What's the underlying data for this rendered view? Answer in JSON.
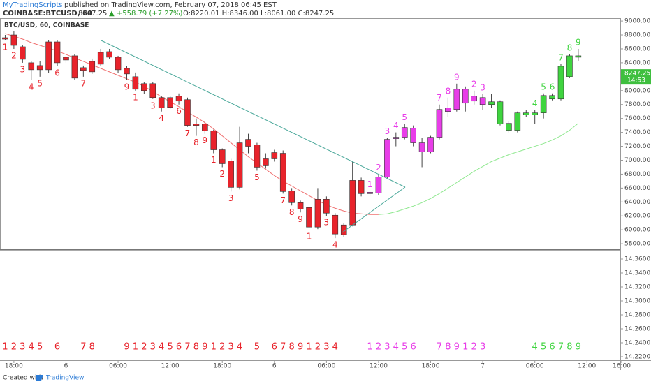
{
  "header": {
    "author": "MyTradingScripts",
    "published": "published on TradingView.com, February 07, 2018 06:45 EST",
    "symbol": "COINBASE:BTCUSD, 60",
    "price": "8247.25",
    "change": "▲ +558.79 (+7.27%)",
    "ohlc": "O:8220.01 H:8346.00 L:8061.00 C:8247.25"
  },
  "footer": {
    "created": "Created with",
    "brand": "TradingView"
  },
  "chart_data": {
    "type": "candlestick",
    "title": "BTC/USD, 60, COINBASE",
    "open": [
      8760,
      8800,
      8630,
      8400,
      8300,
      8300,
      8700,
      8480,
      8500,
      8330,
      8270,
      8380,
      8560,
      8480,
      8320,
      8200,
      8100,
      8100,
      7900,
      7760,
      7920,
      7870,
      7520,
      7520,
      7420,
      7150,
      6990,
      6610,
      7300,
      7220,
      7020,
      7020,
      7100,
      6560,
      6390,
      6320,
      6040,
      6440,
      6210,
      5930,
      6070,
      6710,
      6520,
      6530,
      6760,
      7310,
      7330,
      7460,
      7250,
      7120,
      7330,
      7700,
      7730,
      8020,
      7920,
      7900,
      7840,
      7840,
      7530,
      7430,
      7650,
      7650,
      7680,
      7880,
      7880,
      8200,
      8480
    ],
    "high": [
      8800,
      8850,
      8660,
      8420,
      8420,
      8720,
      8720,
      8500,
      8520,
      8360,
      8460,
      8600,
      8600,
      8500,
      8350,
      8260,
      8120,
      8120,
      7920,
      7920,
      7960,
      7900,
      7600,
      7560,
      7440,
      7170,
      7020,
      7480,
      7380,
      7250,
      7100,
      7150,
      7140,
      6600,
      6420,
      6350,
      6600,
      6480,
      6240,
      6100,
      6980,
      6750,
      6560,
      6800,
      7320,
      7400,
      7520,
      7500,
      7320,
      7350,
      7800,
      7900,
      8100,
      8060,
      8000,
      7950,
      7950,
      7860,
      7560,
      7700,
      7720,
      7720,
      7960,
      7960,
      8380,
      8520,
      8600
    ],
    "low": [
      8720,
      8600,
      8400,
      8150,
      8200,
      8250,
      8350,
      8400,
      8150,
      8200,
      8240,
      8350,
      8450,
      8250,
      8150,
      8000,
      7950,
      7880,
      7700,
      7740,
      7800,
      7480,
      7350,
      7380,
      7100,
      6900,
      6550,
      6580,
      7100,
      6850,
      6880,
      6980,
      6520,
      6350,
      6250,
      6000,
      6010,
      6200,
      5880,
      5900,
      6050,
      6480,
      6480,
      6500,
      6740,
      7200,
      7300,
      7200,
      6900,
      7100,
      7300,
      7620,
      7700,
      7700,
      7800,
      7720,
      7750,
      7500,
      7400,
      7400,
      7620,
      7520,
      7600,
      7860,
      7860,
      8180,
      8430
    ],
    "close": [
      8740,
      8650,
      8450,
      8300,
      8360,
      8700,
      8400,
      8440,
      8180,
      8290,
      8420,
      8550,
      8480,
      8300,
      8240,
      8020,
      8000,
      7900,
      7750,
      7900,
      7850,
      7500,
      7500,
      7420,
      7150,
      6950,
      6610,
      7250,
      7200,
      6900,
      6920,
      7110,
      6550,
      6390,
      6300,
      6040,
      6440,
      6240,
      5940,
      6070,
      6710,
      6520,
      6540,
      6760,
      7300,
      7330,
      7470,
      7250,
      7120,
      7330,
      7730,
      7750,
      8020,
      7820,
      7850,
      7800,
      7800,
      7520,
      7430,
      7680,
      7680,
      7680,
      7930,
      7930,
      8350,
      8500,
      8500
    ],
    "candle_colors": [
      "#e8232b",
      "#e8232b",
      "#e8232b",
      "#e8232b",
      "#e8232b",
      "#e8232b",
      "#e8232b",
      "#e8232b",
      "#e8232b",
      "#e8232b",
      "#e8232b",
      "#e8232b",
      "#e8232b",
      "#e8232b",
      "#e8232b",
      "#e8232b",
      "#e8232b",
      "#e8232b",
      "#e8232b",
      "#e8232b",
      "#e8232b",
      "#e8232b",
      "#e8232b",
      "#e8232b",
      "#e8232b",
      "#e8232b",
      "#e8232b",
      "#e8232b",
      "#e8232b",
      "#e8232b",
      "#e8232b",
      "#e8232b",
      "#e8232b",
      "#e8232b",
      "#e8232b",
      "#e8232b",
      "#e8232b",
      "#e8232b",
      "#e8232b",
      "#e8232b",
      "#e8232b",
      "#e8232b",
      "#e83de8",
      "#e83de8",
      "#e83de8",
      "#e83de8",
      "#e83de8",
      "#e83de8",
      "#e83de8",
      "#e83de8",
      "#e83de8",
      "#e83de8",
      "#e83de8",
      "#e83de8",
      "#e83de8",
      "#e83de8",
      "#3fd43f",
      "#3fd43f",
      "#3fd43f",
      "#3fd43f",
      "#3fd43f",
      "#3fd43f",
      "#3fd43f",
      "#3fd43f",
      "#3fd43f",
      "#3fd43f",
      "#3fd43f"
    ],
    "lines": [
      {
        "color": "#f07070",
        "values": [
          8820,
          8780,
          8740,
          8690,
          8650,
          8610,
          8570,
          8520,
          8470,
          8420,
          8370,
          8320,
          8270,
          8220,
          8170,
          8120,
          8060,
          7990,
          7910,
          7840,
          7770,
          7690,
          7620,
          7540,
          7450,
          7350,
          7250,
          7150,
          7050,
          6960,
          6870,
          6780,
          6700,
          6630,
          6560,
          6490,
          6420,
          6360,
          6310,
          6270,
          6240,
          6230,
          6220,
          6220,
          null,
          null,
          null,
          null,
          null,
          null,
          null,
          null,
          null,
          null,
          null,
          null,
          null,
          null,
          null,
          null,
          null,
          null,
          null,
          null,
          null,
          null,
          null
        ]
      },
      {
        "color": "#8fe88f",
        "values": [
          null,
          null,
          null,
          null,
          null,
          null,
          null,
          null,
          null,
          null,
          null,
          null,
          null,
          null,
          null,
          null,
          null,
          null,
          null,
          null,
          null,
          null,
          null,
          null,
          null,
          null,
          null,
          null,
          null,
          null,
          null,
          null,
          null,
          null,
          null,
          null,
          null,
          null,
          null,
          null,
          null,
          null,
          null,
          6220,
          6230,
          6260,
          6300,
          6340,
          6390,
          6450,
          6520,
          6600,
          6680,
          6760,
          6840,
          6910,
          6980,
          7030,
          7080,
          7120,
          7160,
          7200,
          7240,
          7290,
          7350,
          7430,
          7530
        ]
      }
    ],
    "setup_labels": [
      {
        "i": 0,
        "label": 1
      },
      {
        "i": 1,
        "label": 2
      },
      {
        "i": 2,
        "label": 3
      },
      {
        "i": 3,
        "label": 4
      },
      {
        "i": 4,
        "label": 5
      },
      {
        "i": 6,
        "label": 6
      },
      {
        "i": 9,
        "label": 7
      },
      {
        "i": 14,
        "label": 9
      },
      {
        "i": 15,
        "label": 1
      },
      {
        "i": 17,
        "label": 3
      },
      {
        "i": 18,
        "label": 4
      },
      {
        "i": 20,
        "label": 6
      },
      {
        "i": 21,
        "label": 7
      },
      {
        "i": 22,
        "label": 8
      },
      {
        "i": 23,
        "label": 9
      },
      {
        "i": 24,
        "label": 1
      },
      {
        "i": 25,
        "label": 2
      },
      {
        "i": 26,
        "label": 3
      },
      {
        "i": 29,
        "label": 5
      },
      {
        "i": 32,
        "label": 7
      },
      {
        "i": 33,
        "label": 8
      },
      {
        "i": 34,
        "label": 9
      },
      {
        "i": 35,
        "label": 1
      },
      {
        "i": 37,
        "label": 3
      },
      {
        "i": 38,
        "label": 4
      },
      {
        "i": 42,
        "label": 1
      },
      {
        "i": 43,
        "label": 2
      },
      {
        "i": 44,
        "label": 3
      },
      {
        "i": 45,
        "label": 4
      },
      {
        "i": 46,
        "label": 5
      },
      {
        "i": 50,
        "label": 7
      },
      {
        "i": 51,
        "label": 8
      },
      {
        "i": 52,
        "label": 9
      },
      {
        "i": 54,
        "label": 2
      },
      {
        "i": 55,
        "label": 3
      },
      {
        "i": 61,
        "label": 4
      },
      {
        "i": 62,
        "label": 5
      },
      {
        "i": 63,
        "label": 6
      },
      {
        "i": 64,
        "label": 7
      },
      {
        "i": 65,
        "label": 8
      },
      {
        "i": 66,
        "label": 9
      }
    ],
    "count_row": [
      {
        "i": 0,
        "label": 1
      },
      {
        "i": 1,
        "label": 2
      },
      {
        "i": 2,
        "label": 3
      },
      {
        "i": 3,
        "label": 4
      },
      {
        "i": 4,
        "label": 5
      },
      {
        "i": 6,
        "label": 6
      },
      {
        "i": 9,
        "label": 7
      },
      {
        "i": 10,
        "label": 8
      },
      {
        "i": 14,
        "label": 9
      },
      {
        "i": 15,
        "label": 1
      },
      {
        "i": 16,
        "label": 2
      },
      {
        "i": 17,
        "label": 3
      },
      {
        "i": 18,
        "label": 4
      },
      {
        "i": 19,
        "label": 5
      },
      {
        "i": 20,
        "label": 6
      },
      {
        "i": 21,
        "label": 7
      },
      {
        "i": 22,
        "label": 8
      },
      {
        "i": 23,
        "label": 9
      },
      {
        "i": 24,
        "label": 1
      },
      {
        "i": 25,
        "label": 2
      },
      {
        "i": 26,
        "label": 3
      },
      {
        "i": 27,
        "label": 4
      },
      {
        "i": 29,
        "label": 5
      },
      {
        "i": 31,
        "label": 6
      },
      {
        "i": 32,
        "label": 7
      },
      {
        "i": 33,
        "label": 8
      },
      {
        "i": 34,
        "label": 9
      },
      {
        "i": 35,
        "label": 1
      },
      {
        "i": 36,
        "label": 2
      },
      {
        "i": 37,
        "label": 3
      },
      {
        "i": 38,
        "label": 4
      },
      {
        "i": 42,
        "label": 1
      },
      {
        "i": 43,
        "label": 2
      },
      {
        "i": 44,
        "label": 3
      },
      {
        "i": 45,
        "label": 4
      },
      {
        "i": 46,
        "label": 5
      },
      {
        "i": 47,
        "label": 6
      },
      {
        "i": 50,
        "label": 7
      },
      {
        "i": 51,
        "label": 8
      },
      {
        "i": 52,
        "label": 9
      },
      {
        "i": 53,
        "label": 1
      },
      {
        "i": 54,
        "label": 2
      },
      {
        "i": 55,
        "label": 3
      },
      {
        "i": 61,
        "label": 4
      },
      {
        "i": 62,
        "label": 5
      },
      {
        "i": 63,
        "label": 6
      },
      {
        "i": 64,
        "label": 7
      },
      {
        "i": 65,
        "label": 8
      },
      {
        "i": 66,
        "label": 9
      }
    ],
    "xlim": [
      -0.6,
      71
    ],
    "xticks": [
      {
        "value": 1,
        "label": "18:00"
      },
      {
        "value": 7,
        "label": "6"
      },
      {
        "value": 13,
        "label": "06:00"
      },
      {
        "value": 19,
        "label": "12:00"
      },
      {
        "value": 25,
        "label": "18:00"
      },
      {
        "value": 31,
        "label": "6"
      },
      {
        "value": 37,
        "label": "06:00"
      },
      {
        "value": 43,
        "label": "12:00"
      },
      {
        "value": 49,
        "label": "18:00"
      },
      {
        "value": 55,
        "label": "7"
      },
      {
        "value": 61,
        "label": "06:00"
      },
      {
        "value": 67,
        "label": "12:00"
      },
      {
        "value": 71,
        "label": "16:00"
      }
    ],
    "ylim": [
      5721,
      9041
    ],
    "yticks": [
      {
        "value": 5800,
        "label": "5800.00"
      },
      {
        "value": 6000,
        "label": "6000.00"
      },
      {
        "value": 6200,
        "label": "6200.00"
      },
      {
        "value": 6400,
        "label": "6400.00"
      },
      {
        "value": 6600,
        "label": "6600.00"
      },
      {
        "value": 6800,
        "label": "6800.00"
      },
      {
        "value": 7000,
        "label": "7000.00"
      },
      {
        "value": 7200,
        "label": "7200.00"
      },
      {
        "value": 7400,
        "label": "7400.00"
      },
      {
        "value": 7600,
        "label": "7600.00"
      },
      {
        "value": 7800,
        "label": "7800.00"
      },
      {
        "value": 8000,
        "label": "8000.00"
      },
      {
        "value": 8200,
        "label": "8200.00"
      },
      {
        "value": 8400,
        "label": "8400.00"
      },
      {
        "value": 8600,
        "label": "8600.00"
      },
      {
        "value": 8800,
        "label": "8800.00"
      },
      {
        "value": 9000,
        "label": "9000.00"
      }
    ],
    "last_price": 8247.25,
    "countdown": "14:53",
    "last_price_color": "#3fbf3f",
    "lower_ylim": [
      14.215,
      14.373
    ],
    "lower_yticks": [
      {
        "value": 14.36,
        "label": "14.3600"
      },
      {
        "value": 14.34,
        "label": "14.3400"
      },
      {
        "value": 14.32,
        "label": "14.3200"
      },
      {
        "value": 14.3,
        "label": "14.3000"
      },
      {
        "value": 14.28,
        "label": "14.2800"
      },
      {
        "value": 14.26,
        "label": "14.2600"
      },
      {
        "value": 14.24,
        "label": "14.2400"
      },
      {
        "value": 14.22,
        "label": "14.2200"
      }
    ],
    "grid": false
  }
}
